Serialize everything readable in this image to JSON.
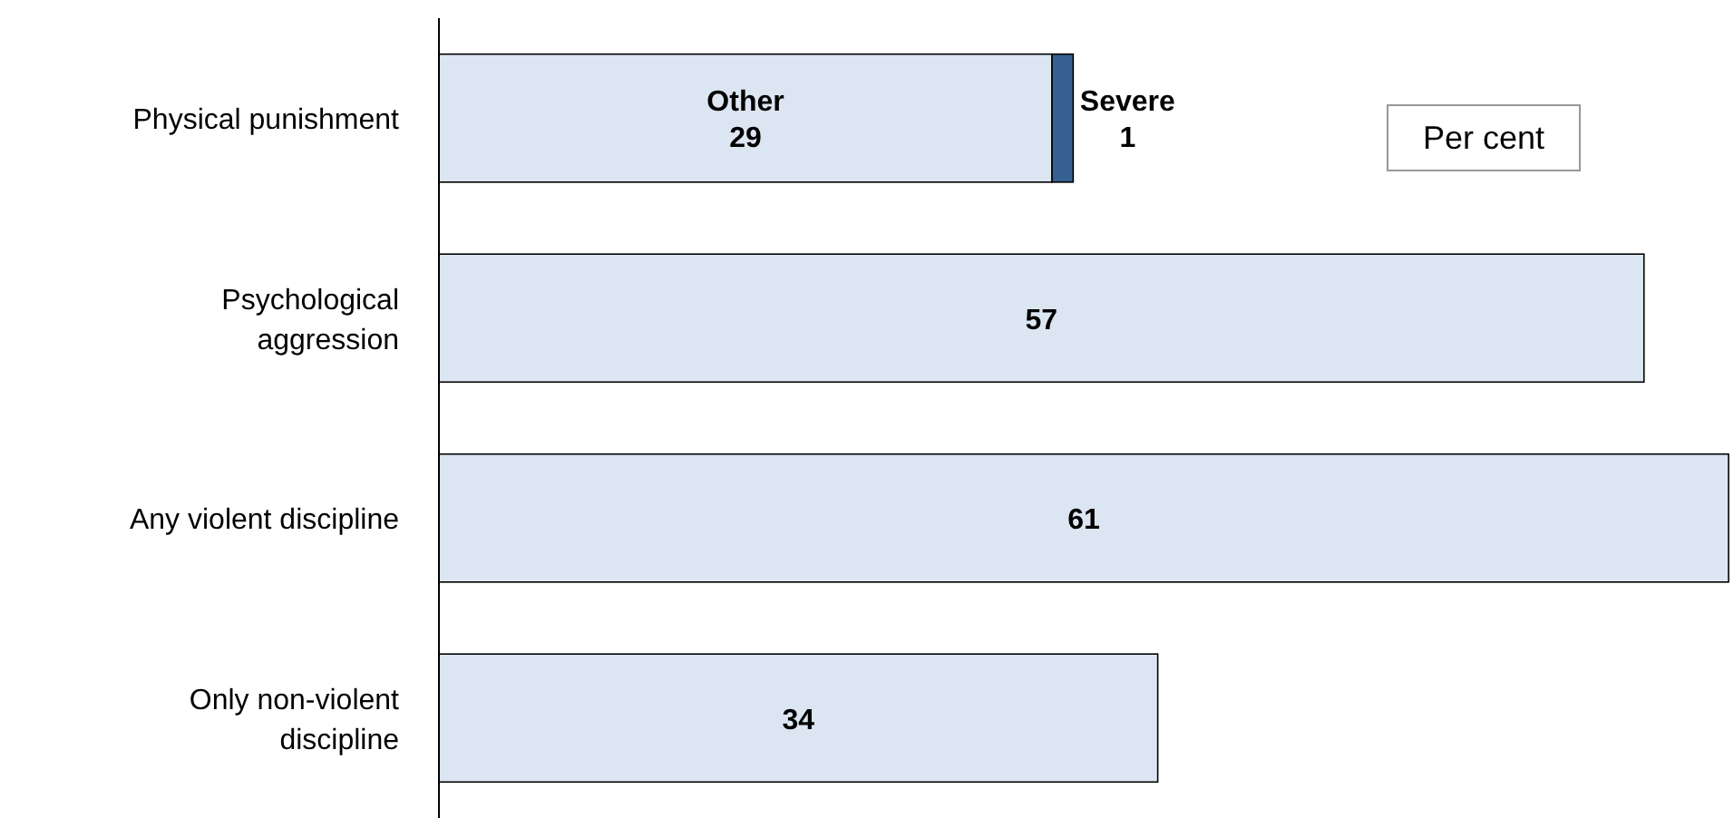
{
  "chart_data": {
    "type": "bar",
    "orientation": "horizontal",
    "stacked": true,
    "data_labels": true,
    "categories": [
      "Physical punishment",
      "Psychological aggression",
      "Any violent discipline",
      "Only non-violent discipline"
    ],
    "series": [
      {
        "name": "Other",
        "color": "#dce6f2",
        "values": [
          29,
          57,
          61,
          34
        ]
      },
      {
        "name": "Severe",
        "color": "#376092",
        "values": [
          1,
          null,
          null,
          null
        ]
      }
    ],
    "annotations": [
      "Per cent"
    ]
  }
}
